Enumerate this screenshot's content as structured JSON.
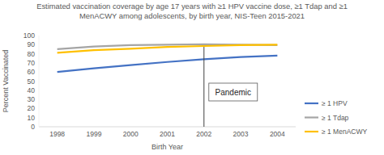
{
  "chart_data": {
    "type": "line",
    "title": "Estimated vaccination coverage by age 17 years with ≥1 HPV vaccine dose, ≥1 Tdap and ≥1 MenACWY among adolescents, by birth year, NIS-Teen 2015-2021",
    "x_label": "Birth Year",
    "y_label": "Percent Vaccinated",
    "categories": [
      "1998",
      "1999",
      "2000",
      "2001",
      "2002",
      "2003",
      "2004"
    ],
    "series": [
      {
        "name": "≥ 1 HPV",
        "color": "#4472c4",
        "values": [
          60,
          64,
          67.5,
          71,
          74,
          76.5,
          78
        ]
      },
      {
        "name": "≥ 1 Tdap",
        "color": "#a5a5a5",
        "values": [
          85,
          88,
          89.5,
          90,
          90.5,
          90,
          89.5
        ]
      },
      {
        "name": "≥ 1 MenACWY",
        "color": "#ffc000",
        "values": [
          81,
          84,
          85.5,
          87.5,
          88.5,
          89.5,
          90
        ]
      }
    ],
    "annotations": [
      {
        "text": "Pandemic",
        "x": "2002"
      }
    ],
    "ylim": [
      0,
      100
    ],
    "yticks": [
      0,
      10,
      20,
      30,
      40,
      50,
      60,
      70,
      80,
      90,
      100
    ],
    "grid": false,
    "legend": "right"
  }
}
